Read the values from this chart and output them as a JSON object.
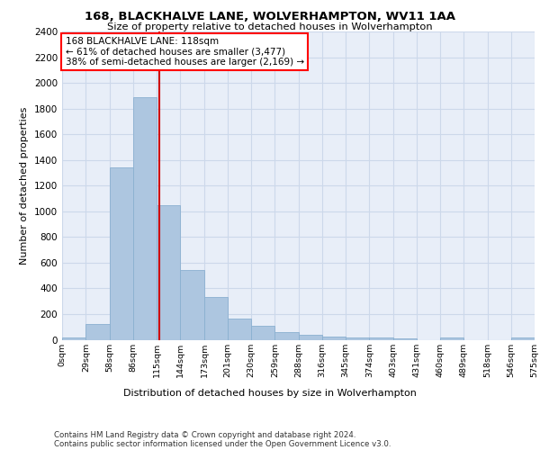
{
  "title_line1": "168, BLACKHALVE LANE, WOLVERHAMPTON, WV11 1AA",
  "title_line2": "Size of property relative to detached houses in Wolverhampton",
  "xlabel": "Distribution of detached houses by size in Wolverhampton",
  "ylabel": "Number of detached properties",
  "footnote1": "Contains HM Land Registry data © Crown copyright and database right 2024.",
  "footnote2": "Contains public sector information licensed under the Open Government Licence v3.0.",
  "annotation_line1": "168 BLACKHALVE LANE: 118sqm",
  "annotation_line2": "← 61% of detached houses are smaller (3,477)",
  "annotation_line3": "38% of semi-detached houses are larger (2,169) →",
  "bar_color": "#adc6e0",
  "bar_edge_color": "#8ab0d0",
  "grid_color": "#ccd8ea",
  "background_color": "#e8eef8",
  "vline_color": "#cc0000",
  "vline_x": 118,
  "bin_edges": [
    0,
    29,
    58,
    86,
    115,
    144,
    173,
    201,
    230,
    259,
    288,
    316,
    345,
    374,
    403,
    431,
    460,
    489,
    518,
    546,
    575
  ],
  "bar_values": [
    15,
    125,
    1340,
    1890,
    1045,
    540,
    335,
    165,
    110,
    60,
    38,
    28,
    15,
    18,
    10,
    0,
    15,
    0,
    0,
    18
  ],
  "ylim": [
    0,
    2400
  ],
  "yticks": [
    0,
    200,
    400,
    600,
    800,
    1000,
    1200,
    1400,
    1600,
    1800,
    2000,
    2200,
    2400
  ],
  "tick_labels": [
    "0sqm",
    "29sqm",
    "58sqm",
    "86sqm",
    "115sqm",
    "144sqm",
    "173sqm",
    "201sqm",
    "230sqm",
    "259sqm",
    "288sqm",
    "316sqm",
    "345sqm",
    "374sqm",
    "403sqm",
    "431sqm",
    "460sqm",
    "489sqm",
    "518sqm",
    "546sqm",
    "575sqm"
  ]
}
